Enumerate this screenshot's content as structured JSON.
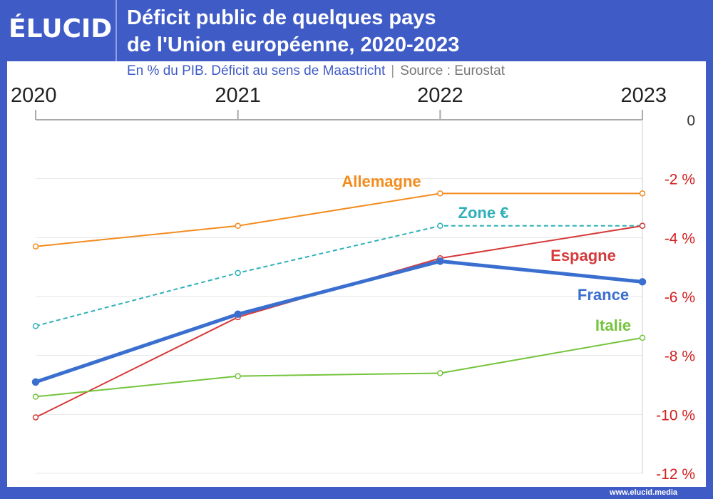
{
  "header": {
    "logo": "ÉLUCID",
    "title_line1": "Déficit public de quelques pays",
    "title_line2": "de l'Union européenne, 2020-2023",
    "subtitle": "En % du PIB. Déficit au sens de Maastricht",
    "source": "Source : Eurostat",
    "separator": "|"
  },
  "footer": {
    "url": "www.elucid.media"
  },
  "chart_data": {
    "type": "line",
    "x": [
      "2020",
      "2021",
      "2022",
      "2023"
    ],
    "ylim": [
      -12,
      0
    ],
    "yticks": [
      0,
      -2,
      -4,
      -6,
      -8,
      -10,
      -12
    ],
    "ytick_labels": [
      "0",
      "-2 %",
      "-4 %",
      "-6 %",
      "-8 %",
      "-10 %",
      "-12 %"
    ],
    "grid": true,
    "series": [
      {
        "name": "Allemagne",
        "color": "#f28c1e",
        "values": [
          -4.3,
          -3.6,
          -2.5,
          -2.5
        ],
        "dashed": false,
        "width": 2
      },
      {
        "name": "Zone €",
        "color": "#2fb0b8",
        "values": [
          -7.0,
          -5.2,
          -3.6,
          -3.6
        ],
        "dashed": true,
        "width": 2
      },
      {
        "name": "Espagne",
        "color": "#d63a3a",
        "values": [
          -10.1,
          -6.7,
          -4.7,
          -3.6
        ],
        "dashed": false,
        "width": 2
      },
      {
        "name": "France",
        "color": "#3a6fd0",
        "values": [
          -8.9,
          -6.6,
          -4.8,
          -5.5
        ],
        "dashed": false,
        "width": 5
      },
      {
        "name": "Italie",
        "color": "#74c43c",
        "values": [
          -9.4,
          -8.7,
          -8.6,
          -7.4
        ],
        "dashed": false,
        "width": 2
      }
    ],
    "ytick_color": "#d22020"
  }
}
